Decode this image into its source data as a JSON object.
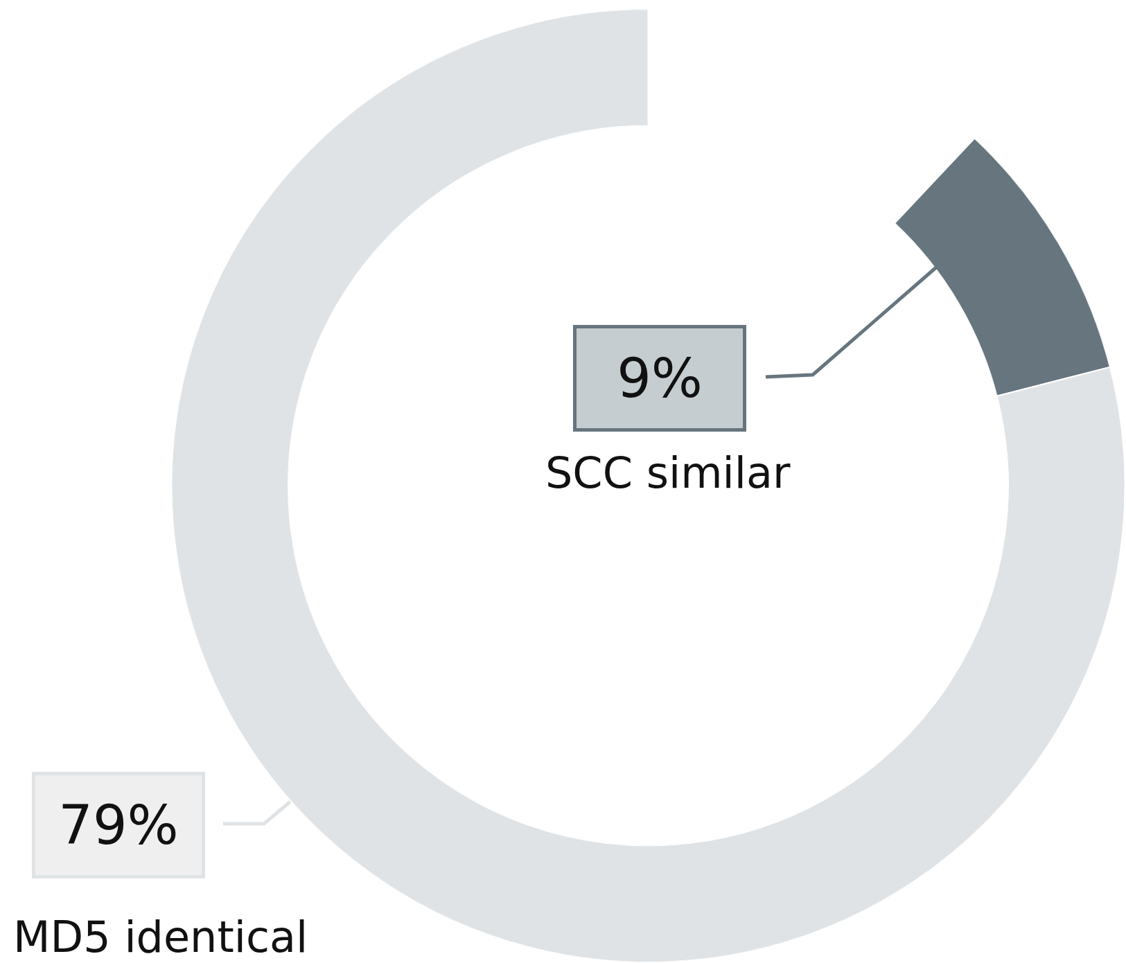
{
  "chart_data": {
    "type": "donut",
    "categories": [
      "SCC similar",
      "MD5 identical"
    ],
    "values": [
      9,
      79
    ],
    "colors": [
      "#66757e",
      "#dfe3e6"
    ],
    "value_labels": [
      "9%",
      "79%"
    ],
    "legend": false
  }
}
